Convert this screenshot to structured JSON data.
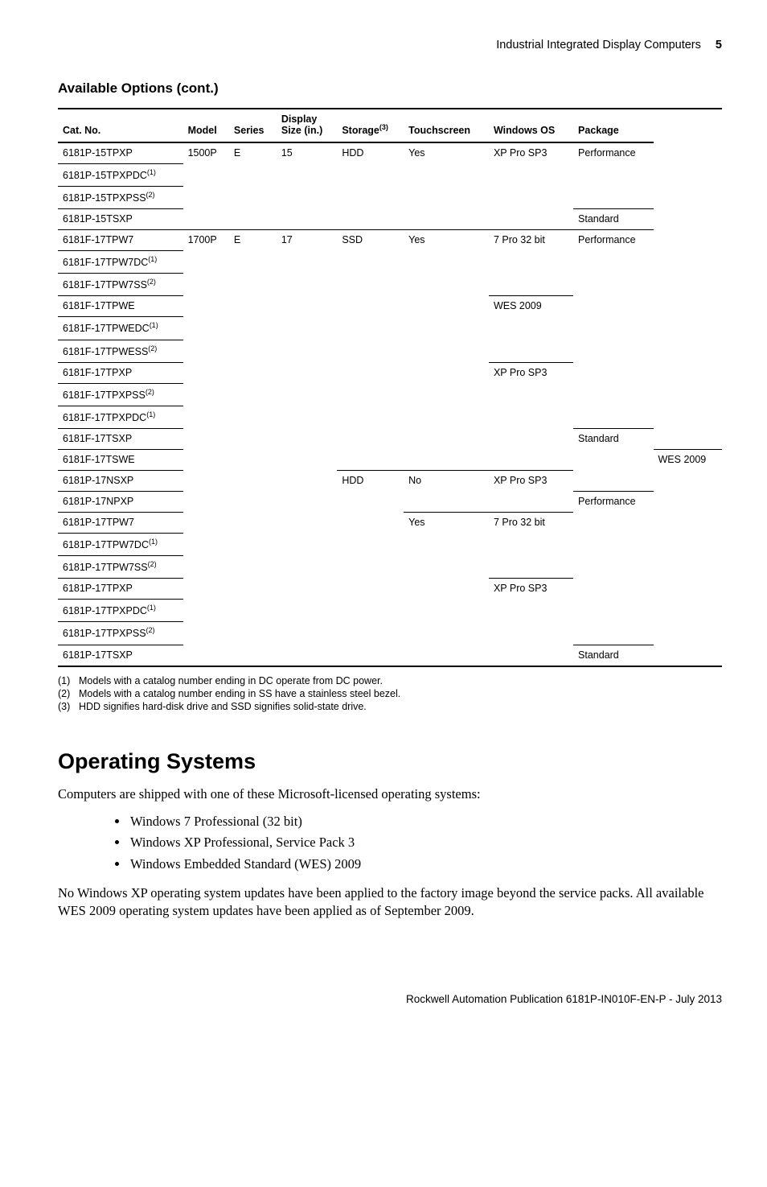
{
  "running_head": {
    "title": "Industrial Integrated Display Computers",
    "page": "5"
  },
  "table_caption": "Available Options (cont.)",
  "columns": {
    "cat": "Cat. No.",
    "model": "Model",
    "series": "Series",
    "display_a": "Display",
    "display_b": "Size (in.)",
    "storage": "Storage",
    "storage_sup": "(3)",
    "touch": "Touchscreen",
    "os": "Windows OS",
    "pkg": "Package"
  },
  "rows": {
    "r1": {
      "cat": "6181P-15TPXP",
      "model": "1500P",
      "series": "E",
      "disp": "15",
      "stor": "HDD",
      "touch": "Yes",
      "os": "XP Pro SP3",
      "pkg": "Performance"
    },
    "r2": {
      "cat": "6181P-15TPXPDC",
      "sup": "(1)"
    },
    "r3": {
      "cat": "6181P-15TPXPSS",
      "sup": "(2)"
    },
    "r4": {
      "cat": "6181P-15TSXP",
      "pkg": "Standard"
    },
    "r5": {
      "cat": "6181F-17TPW7",
      "model": "1700P",
      "series": "E",
      "disp": "17",
      "stor": "SSD",
      "touch": "Yes",
      "os": "7 Pro 32 bit",
      "pkg": "Performance"
    },
    "r6": {
      "cat": "6181F-17TPW7DC",
      "sup": "(1)"
    },
    "r7": {
      "cat": "6181F-17TPW7SS",
      "sup": "(2)"
    },
    "r8": {
      "cat": "6181F-17TPWE",
      "os": "WES 2009"
    },
    "r9": {
      "cat": "6181F-17TPWEDC",
      "sup": "(1)"
    },
    "r10": {
      "cat": "6181F-17TPWESS",
      "sup": "(2)"
    },
    "r11": {
      "cat": "6181F-17TPXP",
      "os": "XP Pro SP3"
    },
    "r12": {
      "cat": "6181F-17TPXPSS",
      "sup": "(2)"
    },
    "r13": {
      "cat": "6181F-17TPXPDC",
      "sup": "(1)"
    },
    "r14": {
      "cat": "6181F-17TSXP",
      "pkg": "Standard"
    },
    "r15": {
      "cat": "6181F-17TSWE",
      "os": "WES 2009"
    },
    "r16": {
      "cat": "6181P-17NSXP",
      "stor": "HDD",
      "touch": "No",
      "os": "XP Pro SP3"
    },
    "r17": {
      "cat": "6181P-17NPXP",
      "pkg": "Performance"
    },
    "r18": {
      "cat": "6181P-17TPW7",
      "touch": "Yes",
      "os": "7 Pro 32 bit"
    },
    "r19": {
      "cat": "6181P-17TPW7DC",
      "sup": "(1)"
    },
    "r20": {
      "cat": "6181P-17TPW7SS",
      "sup": "(2)"
    },
    "r21": {
      "cat": "6181P-17TPXP",
      "os": "XP Pro SP3"
    },
    "r22": {
      "cat": "6181P-17TPXPDC",
      "sup": "(1)"
    },
    "r23": {
      "cat": "6181P-17TPXPSS",
      "sup": "(2)"
    },
    "r24": {
      "cat": "6181P-17TSXP",
      "pkg": "Standard"
    }
  },
  "footnotes": {
    "f1": {
      "n": "(1)",
      "t": "Models with a catalog number ending in DC operate from DC power."
    },
    "f2": {
      "n": "(2)",
      "t": "Models with a catalog number ending in SS have a stainless steel bezel."
    },
    "f3": {
      "n": "(3)",
      "t": "HDD signifies hard-disk drive and SSD signifies solid-state drive."
    }
  },
  "heading": "Operating Systems",
  "para1": "Computers are shipped with one of these Microsoft-licensed operating systems:",
  "bullets": {
    "b1": "Windows 7 Professional (32 bit)",
    "b2": "Windows XP Professional, Service Pack 3",
    "b3": "Windows Embedded Standard (WES) 2009"
  },
  "para2": "No Windows XP operating system updates have been applied to the factory image beyond the service packs. All available WES 2009 operating system updates have been applied as of September 2009.",
  "pubref": "Rockwell Automation Publication 6181P-IN010F-EN-P - July 2013"
}
